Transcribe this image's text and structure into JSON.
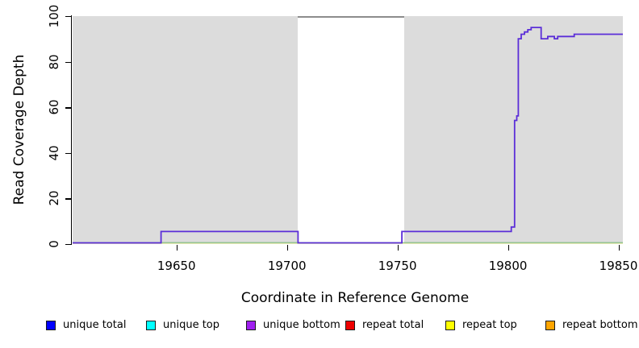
{
  "figure": {
    "x_axis_title": "Coordinate in Reference Genome",
    "y_axis_title": "Read Coverage Depth"
  },
  "chart_data": {
    "type": "line",
    "line_style": "step",
    "title": "",
    "xlabel": "Coordinate in Reference Genome",
    "ylabel": "Read Coverage Depth",
    "xlim": [
      19603,
      19852
    ],
    "ylim": [
      0,
      100
    ],
    "x_ticks": [
      19650,
      19700,
      19750,
      19800,
      19850
    ],
    "y_ticks": [
      0,
      20,
      40,
      60,
      80,
      100
    ],
    "grid": false,
    "plot_background": "#dcdcdc",
    "gap_region": {
      "x0": 19705,
      "x1": 19753,
      "fill": "#ffffff",
      "border_color": "#8c8c8c"
    },
    "series": [
      {
        "name": "unique bottom coverage",
        "color": "#5b2ed8",
        "points": [
          [
            19603,
            0
          ],
          [
            19643,
            0
          ],
          [
            19643,
            5
          ],
          [
            19705,
            5
          ],
          [
            19705,
            0
          ],
          [
            19752,
            0
          ],
          [
            19752,
            5
          ],
          [
            19801.5,
            5
          ],
          [
            19801.5,
            7
          ],
          [
            19803,
            7
          ],
          [
            19803,
            54
          ],
          [
            19804,
            54
          ],
          [
            19804,
            56
          ],
          [
            19804.7,
            56
          ],
          [
            19804.7,
            90
          ],
          [
            19806,
            90
          ],
          [
            19806,
            92
          ],
          [
            19807.5,
            92
          ],
          [
            19807.5,
            93
          ],
          [
            19809,
            93
          ],
          [
            19809,
            94
          ],
          [
            19810.5,
            94
          ],
          [
            19810.5,
            95
          ],
          [
            19815,
            95
          ],
          [
            19815,
            90
          ],
          [
            19818,
            90
          ],
          [
            19818,
            91
          ],
          [
            19821,
            91
          ],
          [
            19821,
            90
          ],
          [
            19822.5,
            90
          ],
          [
            19822.5,
            91
          ],
          [
            19830,
            91
          ],
          [
            19830,
            92
          ],
          [
            19852,
            92
          ]
        ]
      },
      {
        "name": "zero-coverage-baseline-green",
        "color": "#7cbb7c",
        "constant_y": 0
      },
      {
        "name": "zero-coverage-baseline-yellow",
        "color": "#ededb4",
        "constant_y": 0
      }
    ],
    "legend_position": "bottom"
  },
  "legend": {
    "items": [
      {
        "label": "unique total",
        "color": "#0000ff"
      },
      {
        "label": "unique top",
        "color": "#00ffff"
      },
      {
        "label": "unique bottom",
        "color": "#a020f0"
      },
      {
        "label": "repeat total",
        "color": "#ee0000"
      },
      {
        "label": "repeat top",
        "color": "#ffff00"
      },
      {
        "label": "repeat bottom",
        "color": "#ffa500"
      }
    ]
  }
}
